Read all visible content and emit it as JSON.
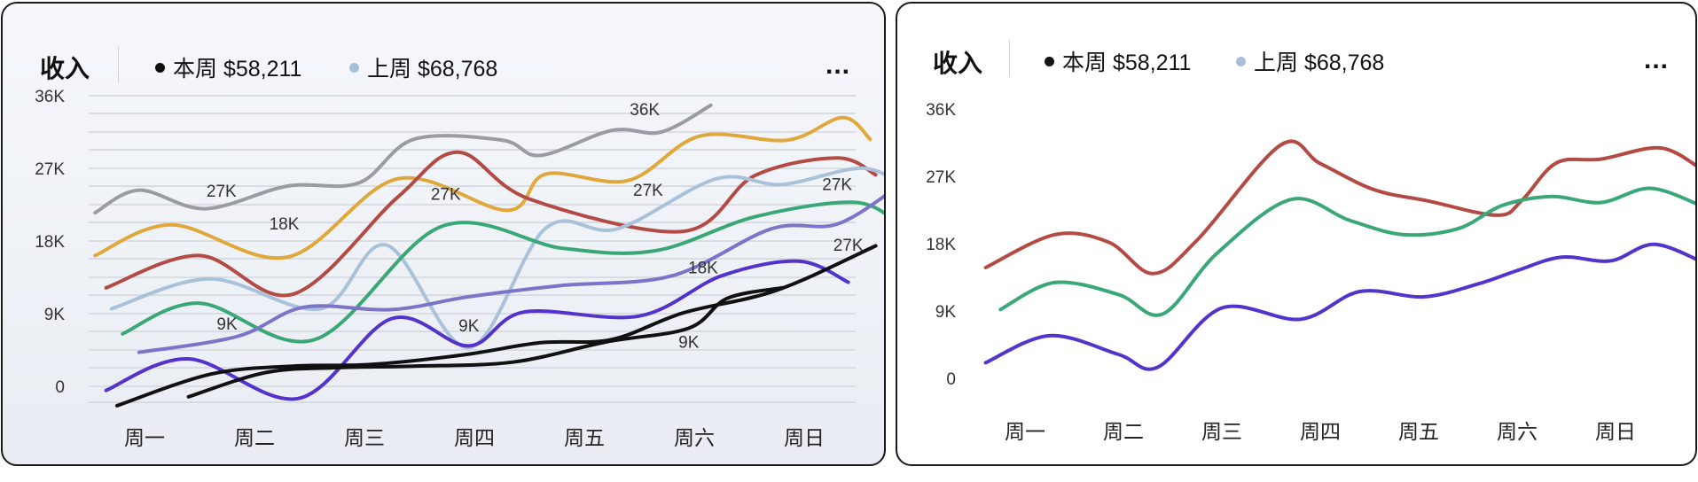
{
  "left_card": {
    "title": "收入",
    "legend": [
      {
        "label": "本周 $58,211",
        "color": "#111111"
      },
      {
        "label": "上周 $68,768",
        "color": "#a9bfd9"
      }
    ],
    "more_label": "..."
  },
  "right_card": {
    "title": "收入",
    "legend": [
      {
        "label": "本周 $58,211",
        "color": "#111111"
      },
      {
        "label": "上周 $68,768",
        "color": "#a9bfd9"
      }
    ],
    "more_label": "..."
  },
  "chart_data": [
    {
      "type": "line",
      "title": "收入",
      "categories": [
        "周一",
        "周二",
        "周三",
        "周四",
        "周五",
        "周六",
        "周日"
      ],
      "yticks": [
        0,
        9000,
        18000,
        27000,
        36000
      ],
      "ytick_labels": [
        "0",
        "9K",
        "18K",
        "27K",
        "36K"
      ],
      "ylim": [
        -2500,
        36000
      ],
      "grid": true,
      "annotations": [
        {
          "text": "27K",
          "x": 0.7,
          "y": 23500
        },
        {
          "text": "18K",
          "x": 1.27,
          "y": 19400
        },
        {
          "text": "27K",
          "x": 2.74,
          "y": 23100
        },
        {
          "text": "36K",
          "x": 4.55,
          "y": 33600
        },
        {
          "text": "27K",
          "x": 4.58,
          "y": 23600
        },
        {
          "text": "9K",
          "x": 0.75,
          "y": 7000
        },
        {
          "text": "9K",
          "x": 2.95,
          "y": 6800
        },
        {
          "text": "18K",
          "x": 5.08,
          "y": 14000
        },
        {
          "text": "9K",
          "x": 4.95,
          "y": 4800
        },
        {
          "text": "27K",
          "x": 6.3,
          "y": 24300
        },
        {
          "text": "27K",
          "x": 6.4,
          "y": 16800
        }
      ],
      "series": [
        {
          "color": "#9a9ca3",
          "x": [
            -0.45,
            -0.05,
            0.55,
            1.3,
            1.95,
            2.45,
            3.25,
            3.6,
            4.25,
            4.7,
            5.15
          ],
          "values": [
            21500,
            24300,
            22000,
            24800,
            25200,
            30600,
            30500,
            28600,
            31700,
            31500,
            34800
          ]
        },
        {
          "color": "#e0a83a",
          "x": [
            -0.45,
            0.25,
            1.3,
            2.3,
            3.3,
            3.65,
            4.4,
            5.05,
            5.85,
            6.35,
            6.6
          ],
          "values": [
            16200,
            20000,
            16000,
            25700,
            21800,
            26300,
            25500,
            31000,
            30500,
            33300,
            30600
          ]
        },
        {
          "color": "#b34a44",
          "x": [
            -0.35,
            0.5,
            1.35,
            2.3,
            2.85,
            3.5,
            4.9,
            5.55,
            6.3,
            6.65
          ],
          "values": [
            12200,
            16200,
            11400,
            23400,
            29000,
            23200,
            19200,
            26100,
            28300,
            26200
          ]
        },
        {
          "color": "#a9c2d9",
          "x": [
            -0.3,
            0.6,
            1.6,
            2.2,
            2.95,
            3.65,
            4.3,
            5.2,
            5.8,
            6.55,
            7.0
          ],
          "values": [
            9600,
            13300,
            9600,
            17500,
            4800,
            19600,
            19500,
            25700,
            25000,
            27000,
            23800
          ]
        },
        {
          "color": "#3aa777",
          "x": [
            -0.2,
            0.5,
            1.55,
            2.7,
            3.8,
            4.65,
            5.55,
            6.45,
            6.85
          ],
          "values": [
            6500,
            10300,
            5800,
            19800,
            17100,
            16800,
            21000,
            22800,
            20300
          ]
        },
        {
          "color": "#7b74c8",
          "x": [
            -0.05,
            0.85,
            1.45,
            2.25,
            2.95,
            3.8,
            4.8,
            5.7,
            6.3,
            6.85
          ],
          "values": [
            4200,
            6200,
            9800,
            9500,
            11100,
            12500,
            13700,
            19500,
            20100,
            24700
          ]
        },
        {
          "color": "#5333cc",
          "x": [
            -0.35,
            0.4,
            1.4,
            2.25,
            2.95,
            3.45,
            4.5,
            5.25,
            5.95,
            6.4
          ],
          "values": [
            -500,
            3400,
            -1500,
            8400,
            5000,
            9200,
            8700,
            13700,
            15500,
            12900
          ]
        },
        {
          "color": "#111111",
          "x": [
            -0.25,
            0.6,
            1.35,
            2.05,
            2.9,
            3.6,
            4.25,
            4.9,
            5.75,
            6.65
          ],
          "values": [
            -2400,
            1500,
            2500,
            2700,
            3900,
            5400,
            5800,
            9100,
            11900,
            17400
          ]
        },
        {
          "color": "#111111",
          "x": [
            0.4,
            1.1,
            1.75,
            2.45,
            3.35,
            4.2,
            4.95,
            5.3,
            5.8
          ],
          "values": [
            -1300,
            1700,
            2300,
            2500,
            3000,
            5500,
            7200,
            10900,
            12200
          ]
        }
      ]
    },
    {
      "type": "line",
      "title": "收入",
      "categories": [
        "周一",
        "周二",
        "周三",
        "周四",
        "周五",
        "周六",
        "周日"
      ],
      "yticks": [
        0,
        9000,
        18000,
        27000,
        36000
      ],
      "ytick_labels": [
        "0",
        "9K",
        "18K",
        "27K",
        "36K"
      ],
      "ylim": [
        -3000,
        36000
      ],
      "grid": false,
      "series": [
        {
          "color": "#b34a44",
          "x": [
            -0.4,
            0.3,
            0.85,
            1.3,
            1.75,
            2.6,
            3.0,
            3.55,
            4.1,
            4.8,
            5.05,
            5.4,
            5.85,
            6.45,
            6.85
          ],
          "values": [
            14800,
            19200,
            18200,
            14000,
            18500,
            31200,
            28700,
            25200,
            23700,
            21800,
            23800,
            28800,
            29300,
            30800,
            28200
          ]
        },
        {
          "color": "#3aa777",
          "x": [
            -0.25,
            0.3,
            0.95,
            1.4,
            1.95,
            2.7,
            3.3,
            3.85,
            4.4,
            4.85,
            5.35,
            5.85,
            6.35,
            6.85
          ],
          "values": [
            9200,
            12800,
            11200,
            8600,
            16700,
            23900,
            21100,
            19200,
            20000,
            23100,
            24300,
            23500,
            25400,
            23200
          ]
        },
        {
          "color": "#5333cc",
          "x": [
            -0.4,
            0.25,
            0.95,
            1.35,
            2.0,
            2.8,
            3.4,
            4.05,
            4.6,
            5.0,
            5.45,
            5.95,
            6.4,
            6.95
          ],
          "values": [
            2100,
            5700,
            3200,
            1500,
            9400,
            7900,
            11600,
            10900,
            12600,
            14400,
            16200,
            15700,
            17900,
            15100
          ]
        }
      ]
    }
  ]
}
